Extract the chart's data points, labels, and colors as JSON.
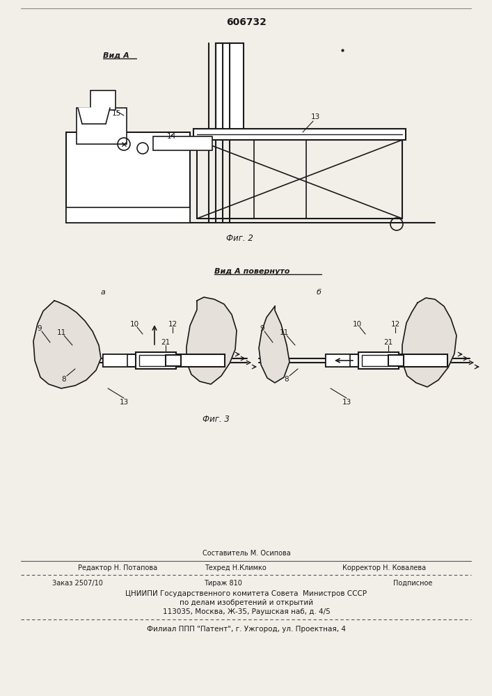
{
  "patent_number": "606732",
  "fig2_label": "Фиг. 2",
  "vid_a_label": "Вид А",
  "vid_a_povern_label": "Вид А повернуто",
  "fig3_label": "Фиг. 3",
  "label_a": "а",
  "label_b": "б",
  "sostavitel_line": "Составитель М. Осипова",
  "editor_line": "Редактор Н. Потапова",
  "tehred_line": "Техред Н.Климко",
  "korrektor_line": "Корректор Н. Ковалева",
  "zakaz_line": "Заказ 2507/10",
  "tirazh_line": "Тираж 810",
  "podpisnoe_line": "Подписное",
  "cniipи_line": "ЦНИИПИ Государственного комитета Совета  Министров СССР",
  "po_delam_line": "по делам изобретений и открытий",
  "address_line": "113035, Москва, Ж-35, Раушская наб, д. 4/5",
  "filial_line": "Филиал ППП \"Патент\", г. Ужгород, ул. Проектная, 4",
  "bg_color": "#f2efe9",
  "line_color": "#1a1a1a"
}
